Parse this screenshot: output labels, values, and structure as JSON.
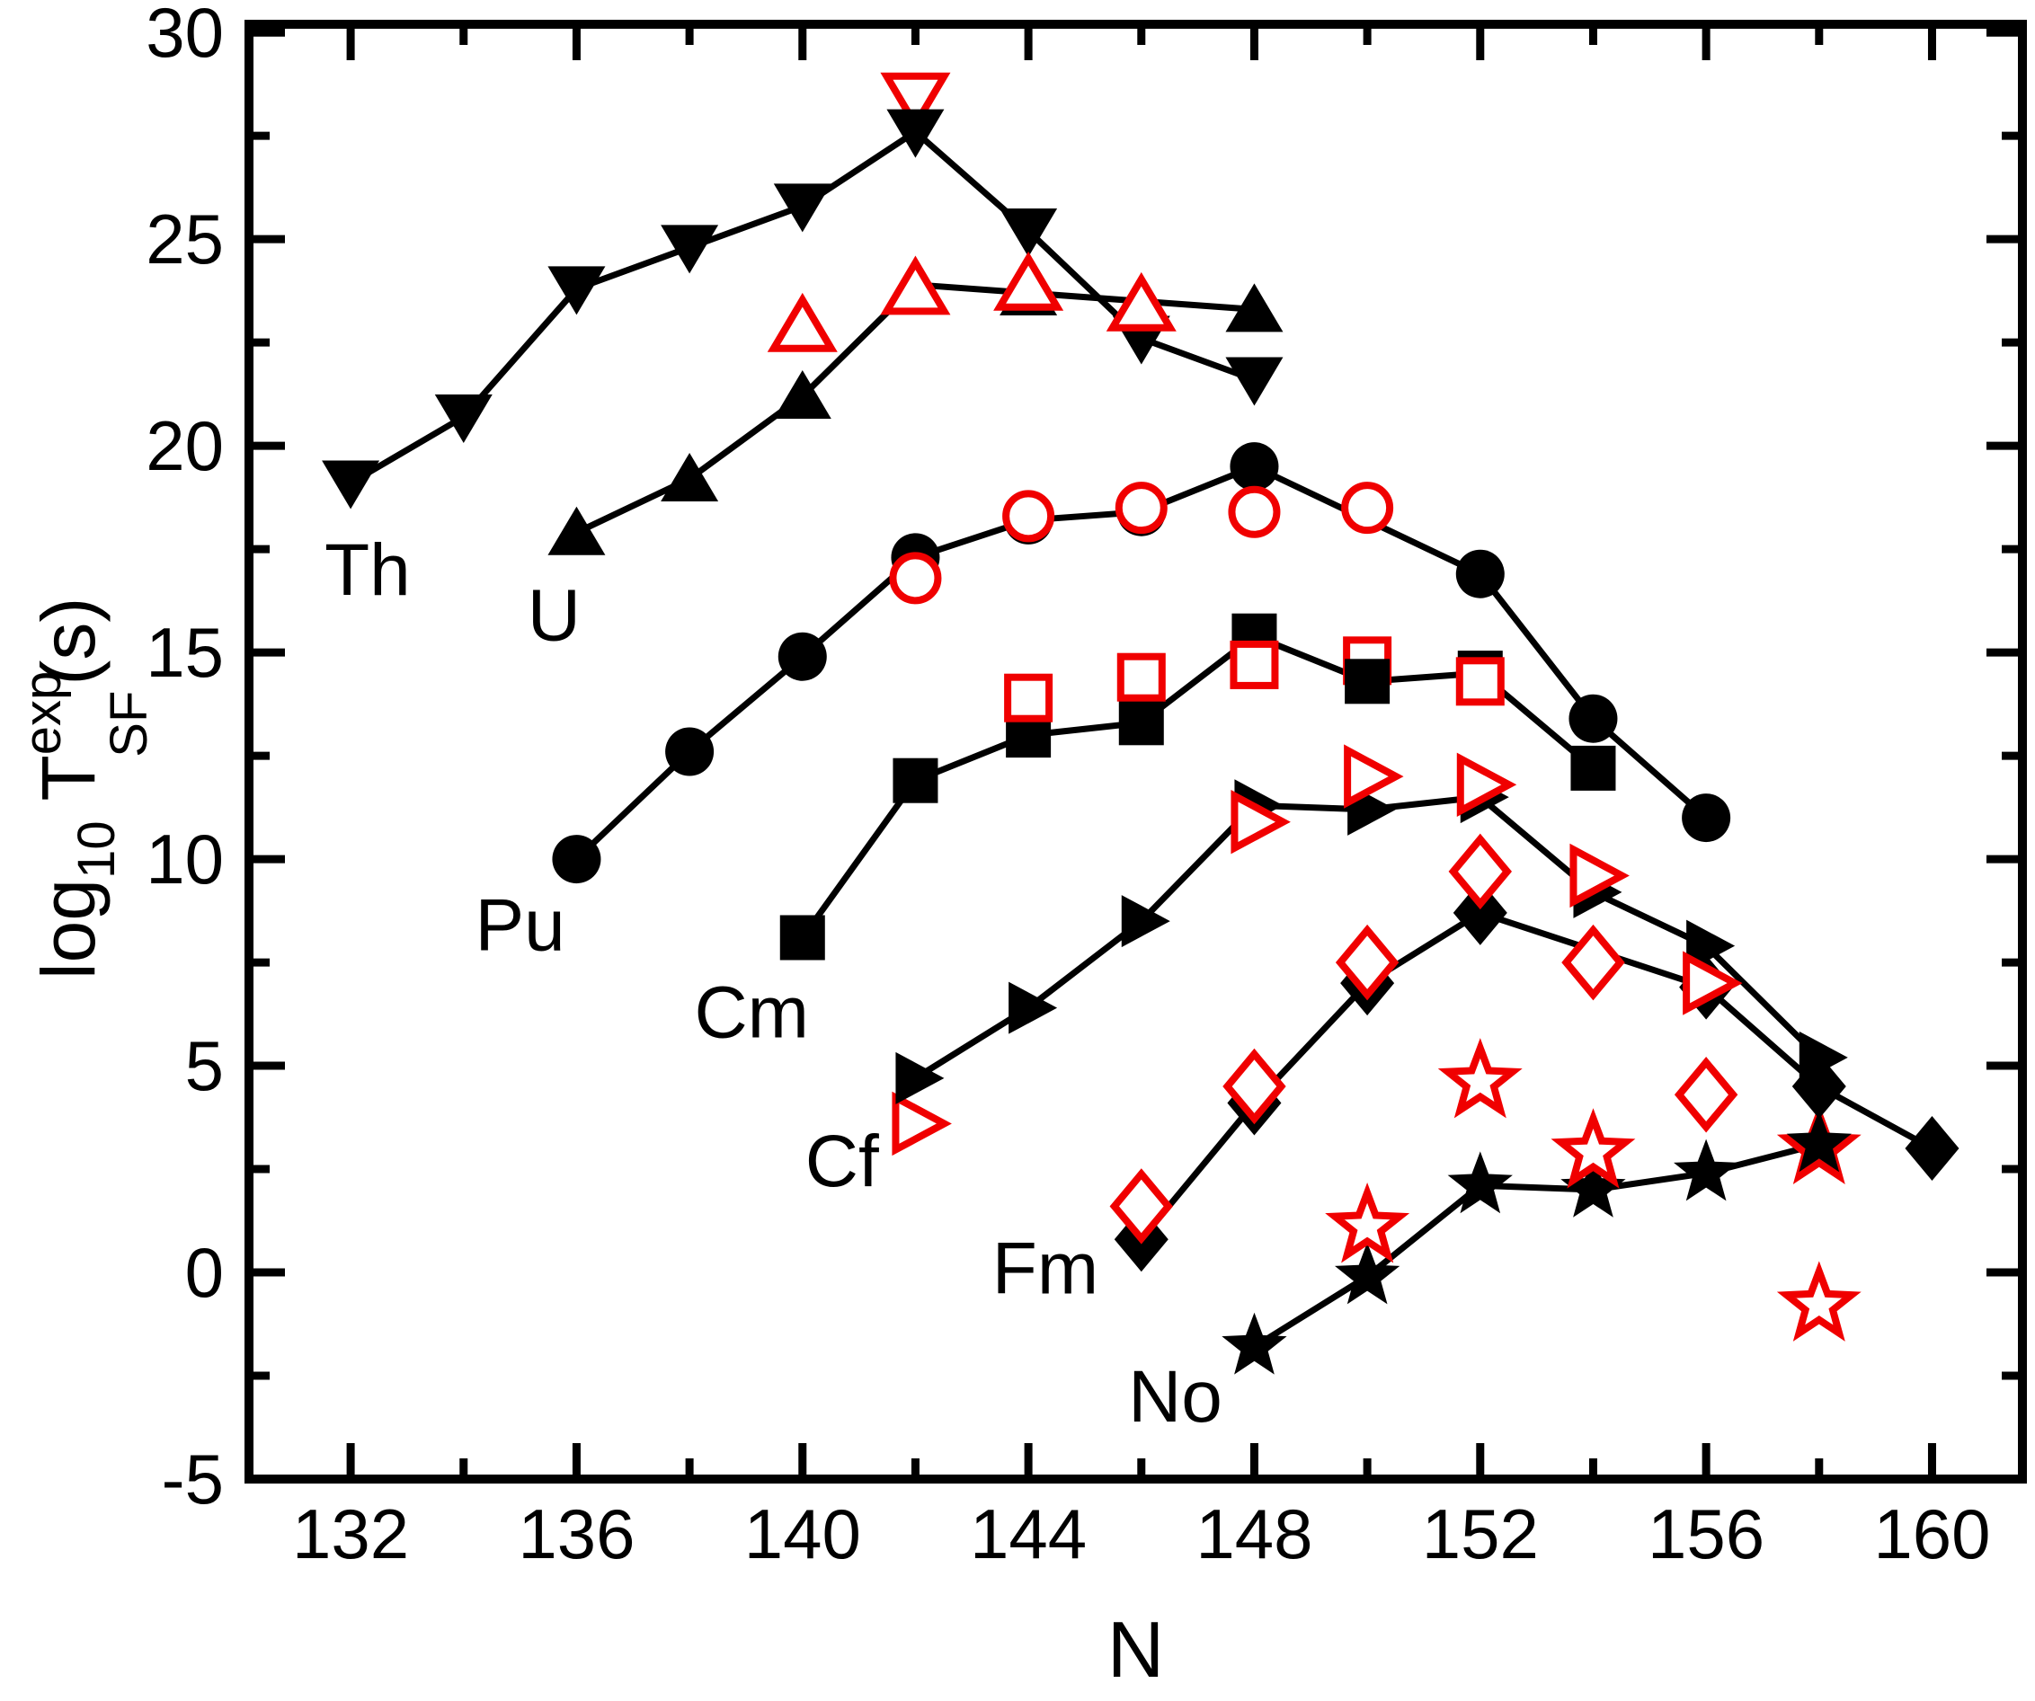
{
  "chart_data": {
    "type": "scatter",
    "title": "",
    "xlabel": "N",
    "ylabel_parts": {
      "prefix": "log",
      "prefix_sub": "10",
      "symbol": " T",
      "sup": "exp",
      "sub": "SF",
      "suffix": "(s)"
    },
    "xlim": [
      130.2,
      161.6
    ],
    "ylim": [
      -5,
      30.2
    ],
    "x_major_ticks": [
      132,
      136,
      140,
      144,
      148,
      152,
      156,
      160
    ],
    "x_minor_ticks": [
      134,
      138,
      142,
      146,
      150,
      154,
      158
    ],
    "y_major_ticks": [
      -5,
      0,
      5,
      10,
      15,
      20,
      25,
      30
    ],
    "y_minor_ticks": [
      -2.5,
      2.5,
      7.5,
      12.5,
      17.5,
      22.5,
      27.5
    ],
    "grid": false,
    "legend": "none",
    "colors": {
      "filled": "#000000",
      "open": "#f00000"
    },
    "series": [
      {
        "element": "Th",
        "marker": "triangle-down",
        "style": "filled",
        "line": true,
        "points": [
          [
            132,
            19.1
          ],
          [
            134,
            20.7
          ],
          [
            136,
            23.8
          ],
          [
            138,
            24.8
          ],
          [
            140,
            25.8
          ],
          [
            142,
            27.6
          ],
          [
            144,
            25.2
          ],
          [
            146,
            22.6
          ],
          [
            148,
            21.6
          ]
        ]
      },
      {
        "element": "Th",
        "marker": "triangle-down",
        "style": "open",
        "line": false,
        "points": [],
        "points_behind": [
          [
            142,
            28.4
          ]
        ]
      },
      {
        "element": "U",
        "marker": "triangle-up",
        "style": "filled",
        "line": true,
        "points": [
          [
            136,
            17.9
          ],
          [
            138,
            19.2
          ],
          [
            140,
            21.2
          ],
          [
            142,
            23.9
          ],
          [
            144,
            23.7
          ],
          [
            146,
            23.5
          ],
          [
            148,
            23.3
          ]
        ]
      },
      {
        "element": "U",
        "marker": "triangle-up",
        "style": "open",
        "line": false,
        "points": [
          [
            140,
            22.9
          ],
          [
            142,
            23.8
          ],
          [
            144,
            23.9
          ],
          [
            146,
            23.4
          ]
        ],
        "points_behind": []
      },
      {
        "element": "Pu",
        "marker": "circle",
        "style": "filled",
        "line": true,
        "points": [
          [
            136,
            10.0
          ],
          [
            138,
            12.6
          ],
          [
            140,
            14.9
          ],
          [
            142,
            17.3
          ],
          [
            144,
            18.2
          ],
          [
            146,
            18.4
          ],
          [
            148,
            19.5
          ],
          [
            152,
            16.9
          ],
          [
            154,
            13.4
          ],
          [
            156,
            11.0
          ]
        ]
      },
      {
        "element": "Pu",
        "marker": "circle",
        "style": "open",
        "line": false,
        "points": [
          [
            142,
            16.8
          ],
          [
            144,
            18.3
          ],
          [
            146,
            18.5
          ],
          [
            148,
            18.4
          ],
          [
            150,
            18.5
          ]
        ],
        "points_behind": []
      },
      {
        "element": "Cm",
        "marker": "square",
        "style": "filled",
        "line": true,
        "points": [
          [
            140,
            8.1
          ],
          [
            142,
            11.9
          ],
          [
            144,
            13.0
          ],
          [
            146,
            13.3
          ],
          [
            148,
            15.4
          ],
          [
            150,
            14.3
          ],
          [
            152,
            14.5
          ],
          [
            154,
            12.2
          ]
        ]
      },
      {
        "element": "Cm",
        "marker": "square",
        "style": "open",
        "line": false,
        "points": [
          [
            144,
            13.9
          ],
          [
            146,
            14.4
          ],
          [
            148,
            14.7
          ],
          [
            152,
            14.3
          ]
        ],
        "points_behind": [
          [
            150,
            14.8
          ]
        ]
      },
      {
        "element": "Cf",
        "marker": "triangle-right",
        "style": "filled",
        "line": true,
        "points": [
          [
            142,
            4.7
          ],
          [
            144,
            6.4
          ],
          [
            146,
            8.5
          ],
          [
            148,
            11.3
          ],
          [
            150,
            11.2
          ],
          [
            152,
            11.5
          ],
          [
            154,
            9.2
          ],
          [
            156,
            7.9
          ],
          [
            158,
            5.2
          ]
        ]
      },
      {
        "element": "Cf",
        "marker": "triangle-right",
        "style": "open",
        "line": false,
        "points": [
          [
            148,
            10.9
          ],
          [
            150,
            12.0
          ],
          [
            152,
            11.8
          ],
          [
            154,
            9.6
          ],
          [
            156,
            7.0
          ]
        ],
        "points_behind": [
          [
            142,
            3.6
          ]
        ]
      },
      {
        "element": "Fm",
        "marker": "diamond",
        "style": "filled",
        "line": true,
        "points": [
          [
            146,
            0.8
          ],
          [
            148,
            4.1
          ],
          [
            150,
            7.0
          ],
          [
            152,
            8.7
          ],
          [
            156,
            6.9
          ],
          [
            158,
            4.5
          ],
          [
            160,
            3.0
          ]
        ]
      },
      {
        "element": "Fm",
        "marker": "diamond",
        "style": "open",
        "line": false,
        "points": [
          [
            146,
            1.6
          ],
          [
            148,
            4.5
          ],
          [
            150,
            7.5
          ],
          [
            152,
            9.7
          ],
          [
            154,
            7.5
          ],
          [
            156,
            4.3
          ]
        ],
        "points_behind": []
      },
      {
        "element": "No",
        "marker": "star",
        "style": "filled",
        "line": true,
        "points": [
          [
            148,
            -1.8
          ],
          [
            150,
            -0.1
          ],
          [
            152,
            2.1
          ],
          [
            154,
            2.0
          ],
          [
            156,
            2.4
          ],
          [
            158,
            3.1
          ]
        ]
      },
      {
        "element": "No",
        "marker": "star",
        "style": "open",
        "line": false,
        "points": [
          [
            150,
            1.1
          ],
          [
            152,
            4.6
          ],
          [
            154,
            2.9
          ],
          [
            158,
            -0.8
          ]
        ],
        "points_behind": [
          [
            158,
            3.0
          ]
        ]
      }
    ],
    "element_labels": [
      {
        "text": "Th",
        "x": 132.3,
        "y": 17.0
      },
      {
        "text": "U",
        "x": 135.6,
        "y": 15.9
      },
      {
        "text": "Pu",
        "x": 135.0,
        "y": 8.4
      },
      {
        "text": "Cm",
        "x": 139.1,
        "y": 6.3
      },
      {
        "text": "Cf",
        "x": 140.7,
        "y": 2.7
      },
      {
        "text": "Fm",
        "x": 144.3,
        "y": 0.1
      },
      {
        "text": "No",
        "x": 146.6,
        "y": -3.0
      }
    ]
  }
}
